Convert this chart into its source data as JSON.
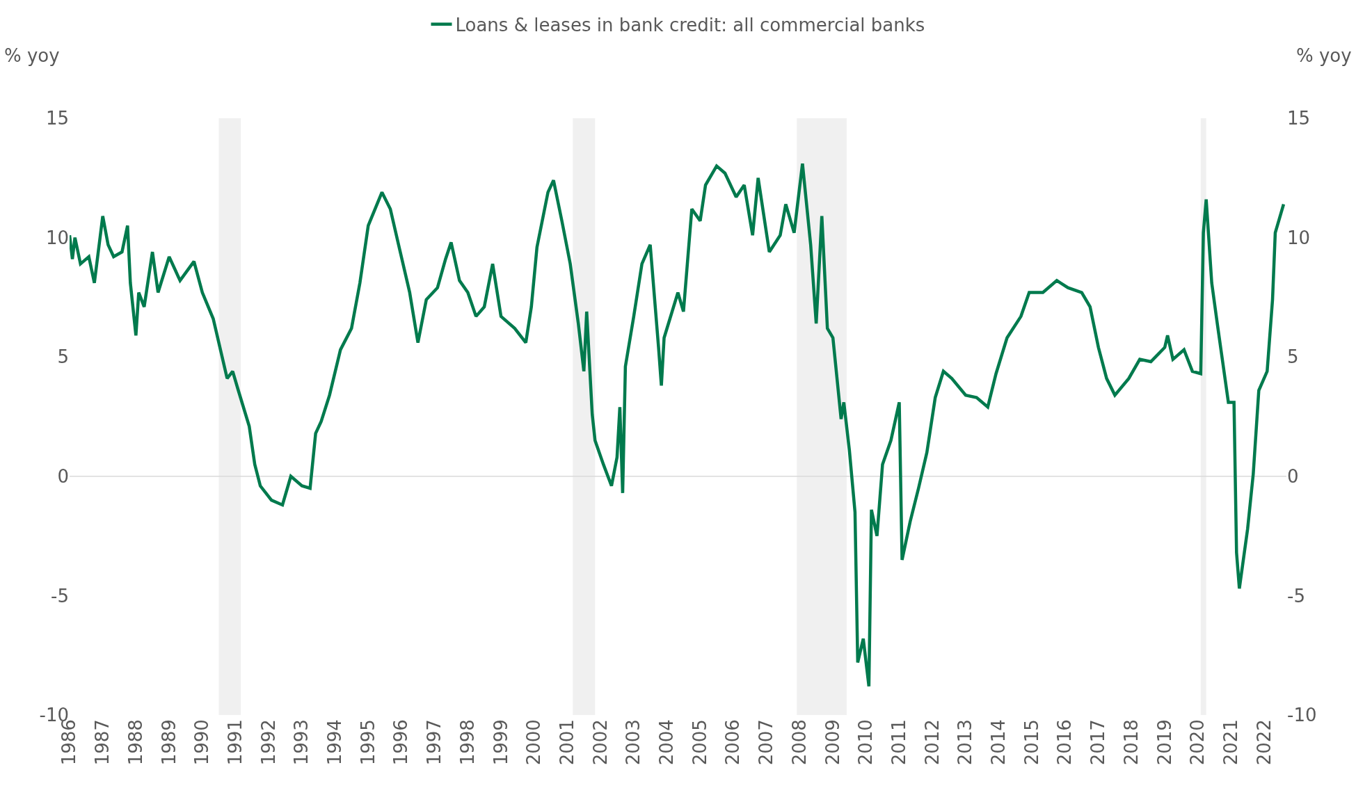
{
  "chart_data": {
    "type": "line",
    "ylabel": "% yoy",
    "y2label": "% yoy",
    "legend": "top",
    "grid": false,
    "line_style": "solid",
    "marker": "none",
    "xlim": [
      "1986-01",
      "2022-09"
    ],
    "xticks": [
      "1986",
      "1987",
      "1988",
      "1989",
      "1990",
      "1991",
      "1992",
      "1993",
      "1994",
      "1995",
      "1996",
      "1997",
      "1998",
      "1999",
      "2000",
      "2001",
      "2002",
      "2003",
      "2004",
      "2005",
      "2006",
      "2007",
      "2008",
      "2009",
      "2010",
      "2011",
      "2012",
      "2013",
      "2014",
      "2015",
      "2016",
      "2017",
      "2018",
      "2019",
      "2020",
      "2021",
      "2022"
    ],
    "ylim": [
      -10,
      15
    ],
    "yticks": [
      -10,
      -5,
      0,
      5,
      10,
      15
    ],
    "y2lim": [
      -10,
      15
    ],
    "y2ticks": [
      -10,
      -5,
      0,
      5,
      10,
      15
    ],
    "ref_lines": [
      {
        "axis": "y",
        "value": 0,
        "color": "#d9d9d9"
      }
    ],
    "bands": [
      {
        "axis": "x",
        "from": "1990-07",
        "to": "1991-03",
        "color": "#f0f0f0"
      },
      {
        "axis": "x",
        "from": "2001-03",
        "to": "2001-11",
        "color": "#f0f0f0"
      },
      {
        "axis": "x",
        "from": "2007-12",
        "to": "2009-06",
        "color": "#f0f0f0"
      },
      {
        "axis": "x",
        "from": "2020-02",
        "to": "2020-04",
        "color": "#f0f0f0"
      }
    ],
    "x": [
      "1986-01",
      "1986-02",
      "1986-03",
      "1986-05",
      "1986-08",
      "1986-10",
      "1987-01",
      "1987-03",
      "1987-05",
      "1987-08",
      "1987-10",
      "1987-11",
      "1988-01",
      "1988-02",
      "1988-04",
      "1988-07",
      "1988-09",
      "1989-01",
      "1989-05",
      "1989-10",
      "1990-01",
      "1990-05",
      "1990-08",
      "1990-10",
      "1990-12",
      "1991-02",
      "1991-06",
      "1991-08",
      "1991-10",
      "1992-02",
      "1992-06",
      "1992-09",
      "1993-01",
      "1993-04",
      "1993-06",
      "1993-08",
      "1993-11",
      "1994-03",
      "1994-07",
      "1994-10",
      "1995-01",
      "1995-06",
      "1995-09",
      "1995-12",
      "1996-04",
      "1996-07",
      "1996-10",
      "1997-02",
      "1997-05",
      "1997-07",
      "1997-10",
      "1998-01",
      "1998-04",
      "1998-07",
      "1998-10",
      "1999-01",
      "1999-06",
      "1999-10",
      "1999-12",
      "2000-02",
      "2000-06",
      "2000-08",
      "2000-11",
      "2001-02",
      "2001-05",
      "2001-07",
      "2001-08",
      "2001-10",
      "2001-11",
      "2002-02",
      "2002-05",
      "2002-07",
      "2002-08",
      "2002-09",
      "2002-10",
      "2003-01",
      "2003-04",
      "2003-07",
      "2003-10",
      "2003-11",
      "2003-12",
      "2004-05",
      "2004-07",
      "2004-10",
      "2005-01",
      "2005-03",
      "2005-07",
      "2005-10",
      "2006-02",
      "2006-05",
      "2006-08",
      "2006-10",
      "2007-02",
      "2007-06",
      "2007-08",
      "2007-11",
      "2008-02",
      "2008-05",
      "2008-07",
      "2008-09",
      "2008-11",
      "2009-01",
      "2009-04",
      "2009-05",
      "2009-07",
      "2009-09",
      "2009-10",
      "2009-12",
      "2010-02",
      "2010-03",
      "2010-05",
      "2010-07",
      "2010-10",
      "2011-01",
      "2011-02",
      "2011-05",
      "2011-08",
      "2011-11",
      "2012-02",
      "2012-05",
      "2012-08",
      "2013-01",
      "2013-05",
      "2013-09",
      "2013-12",
      "2014-04",
      "2014-09",
      "2014-12",
      "2015-05",
      "2015-10",
      "2016-02",
      "2016-07",
      "2016-10",
      "2017-01",
      "2017-04",
      "2017-07",
      "2017-12",
      "2018-04",
      "2018-08",
      "2019-01",
      "2019-02",
      "2019-04",
      "2019-08",
      "2019-11",
      "2020-02",
      "2020-03",
      "2020-04",
      "2020-06",
      "2020-08",
      "2020-12",
      "2021-02",
      "2021-03",
      "2021-04",
      "2021-07",
      "2021-09",
      "2021-11",
      "2022-02",
      "2022-04",
      "2022-05",
      "2022-08"
    ],
    "series": [
      {
        "name": "Loans & leases in bank credit: all commercial banks",
        "color": "#007a4d",
        "values": [
          10.1,
          9.1,
          10.0,
          8.9,
          9.2,
          8.1,
          10.9,
          9.7,
          9.2,
          9.4,
          10.5,
          8.1,
          5.9,
          7.7,
          7.1,
          9.4,
          7.7,
          9.2,
          8.2,
          9.0,
          7.7,
          6.6,
          5.1,
          4.1,
          4.4,
          3.6,
          2.1,
          0.5,
          -0.4,
          -1.0,
          -1.2,
          0.0,
          -0.4,
          -0.5,
          1.8,
          2.3,
          3.4,
          5.3,
          6.2,
          8.1,
          10.5,
          11.9,
          11.2,
          9.7,
          7.7,
          5.6,
          7.4,
          7.9,
          9.1,
          9.8,
          8.2,
          7.7,
          6.7,
          7.1,
          8.9,
          6.7,
          6.2,
          5.6,
          7.1,
          9.6,
          11.9,
          12.4,
          10.7,
          8.9,
          6.4,
          4.4,
          6.9,
          2.6,
          1.5,
          0.5,
          -0.4,
          0.8,
          2.9,
          -0.7,
          4.6,
          6.7,
          8.9,
          9.7,
          5.4,
          3.8,
          5.8,
          7.7,
          6.9,
          11.2,
          10.7,
          12.2,
          13.0,
          12.7,
          11.7,
          12.2,
          10.1,
          12.5,
          9.4,
          10.1,
          11.4,
          10.2,
          13.1,
          9.7,
          6.4,
          10.9,
          6.2,
          5.8,
          2.4,
          3.1,
          1.1,
          -1.5,
          -7.8,
          -6.8,
          -8.8,
          -1.4,
          -2.5,
          0.5,
          1.5,
          3.1,
          -3.5,
          -1.9,
          -0.5,
          1.0,
          3.3,
          4.4,
          4.1,
          3.4,
          3.3,
          2.9,
          4.3,
          5.8,
          6.7,
          7.7,
          7.7,
          8.2,
          7.9,
          7.7,
          7.1,
          5.4,
          4.1,
          3.4,
          4.1,
          4.9,
          4.8,
          5.4,
          5.9,
          4.9,
          5.3,
          4.4,
          4.3,
          10.2,
          11.6,
          8.1,
          6.4,
          3.1,
          3.1,
          -3.2,
          -4.7,
          -2.2,
          0.1,
          3.6,
          4.4,
          7.4,
          10.2,
          11.4
        ]
      }
    ]
  }
}
